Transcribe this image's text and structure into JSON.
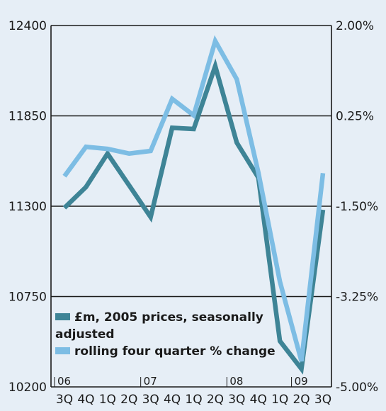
{
  "chart_data": {
    "type": "line",
    "categories": [
      "3Q",
      "4Q",
      "1Q",
      "2Q",
      "3Q",
      "4Q",
      "1Q",
      "2Q",
      "3Q",
      "4Q",
      "1Q",
      "2Q",
      "3Q"
    ],
    "year_markers": [
      {
        "label": "06",
        "index": 0
      },
      {
        "label": "07",
        "index": 4
      },
      {
        "label": "08",
        "index": 8
      },
      {
        "label": "09",
        "index": 11
      }
    ],
    "left_axis": {
      "range": [
        10200,
        12400
      ],
      "ticks": [
        "12400",
        "11850",
        "11300",
        "10750",
        "10200"
      ],
      "values": [
        12400,
        11850,
        11300,
        10750,
        10200
      ]
    },
    "right_axis": {
      "range": [
        -5.0,
        2.0
      ],
      "ticks": [
        "2.00%",
        "0.25%",
        "-1.50%",
        "-3.25%",
        "-5.00%"
      ],
      "values": [
        2.0,
        0.25,
        -1.5,
        -3.25,
        -5.0
      ]
    },
    "series": [
      {
        "name": "£m, 2005 prices, seasonally adjusted",
        "axis": "left",
        "color": "#3e8496",
        "values": [
          11290,
          11417,
          11620,
          11427,
          11234,
          11777,
          11770,
          12153,
          11687,
          11474,
          10479,
          10310,
          11278
        ]
      },
      {
        "name": "rolling four quarter % change",
        "axis": "right",
        "color": "#7dbde4",
        "values": [
          -0.92,
          -0.35,
          -0.39,
          -0.48,
          -0.43,
          0.58,
          0.26,
          1.7,
          0.96,
          -0.85,
          -2.96,
          -4.5,
          -0.86
        ]
      }
    ],
    "grid": "horizontal",
    "legend": "bottom-left"
  },
  "legend": {
    "line1": "£m, 2005 prices, seasonally",
    "line2": "adjusted",
    "line3": "rolling four quarter % change"
  }
}
